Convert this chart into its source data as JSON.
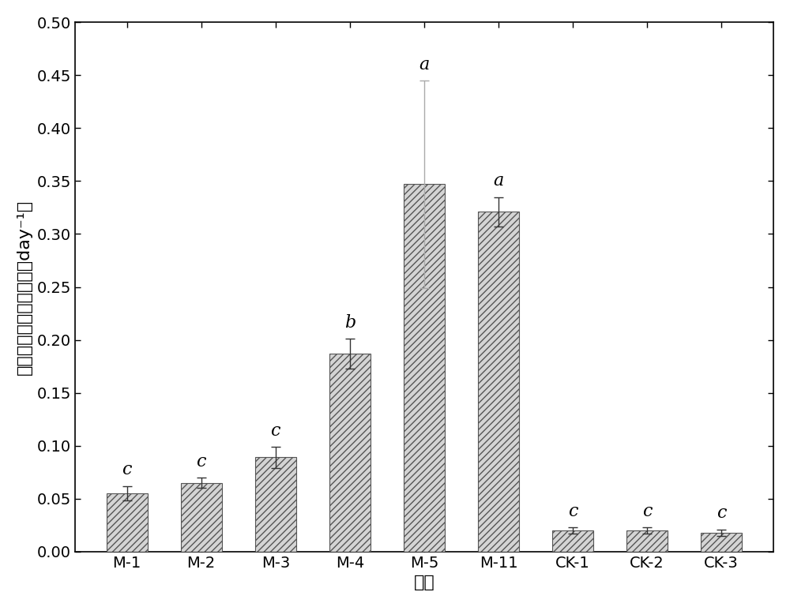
{
  "categories": [
    "M-1",
    "M-2",
    "M-3",
    "M-4",
    "M-5",
    "M-11",
    "CK-1",
    "CK-2",
    "CK-3"
  ],
  "values": [
    0.055,
    0.065,
    0.089,
    0.187,
    0.347,
    0.321,
    0.02,
    0.02,
    0.018
  ],
  "errors": [
    0.007,
    0.005,
    0.01,
    0.014,
    0.098,
    0.014,
    0.003,
    0.003,
    0.003
  ],
  "error_colors": [
    "#333333",
    "#333333",
    "#333333",
    "#333333",
    "#aaaaaa",
    "#333333",
    "#333333",
    "#333333",
    "#333333"
  ],
  "labels": [
    "c",
    "c",
    "c",
    "b",
    "a",
    "a",
    "c",
    "c",
    "c"
  ],
  "ylabel": "四氯乙烯脱氯速率常数（day⁻¹）",
  "xlabel": "组别",
  "ylim": [
    0.0,
    0.5
  ],
  "yticks": [
    0.0,
    0.05,
    0.1,
    0.15,
    0.2,
    0.25,
    0.3,
    0.35,
    0.4,
    0.45,
    0.5
  ],
  "bar_facecolor": "#d4d4d4",
  "hatch": "////",
  "bar_edgecolor": "#555555",
  "hatch_color": "#888888",
  "figsize": [
    10.0,
    7.69
  ],
  "dpi": 100,
  "background_color": "#ffffff",
  "label_fontsize": 16,
  "tick_fontsize": 14,
  "annot_fontsize": 16,
  "bar_width": 0.55
}
